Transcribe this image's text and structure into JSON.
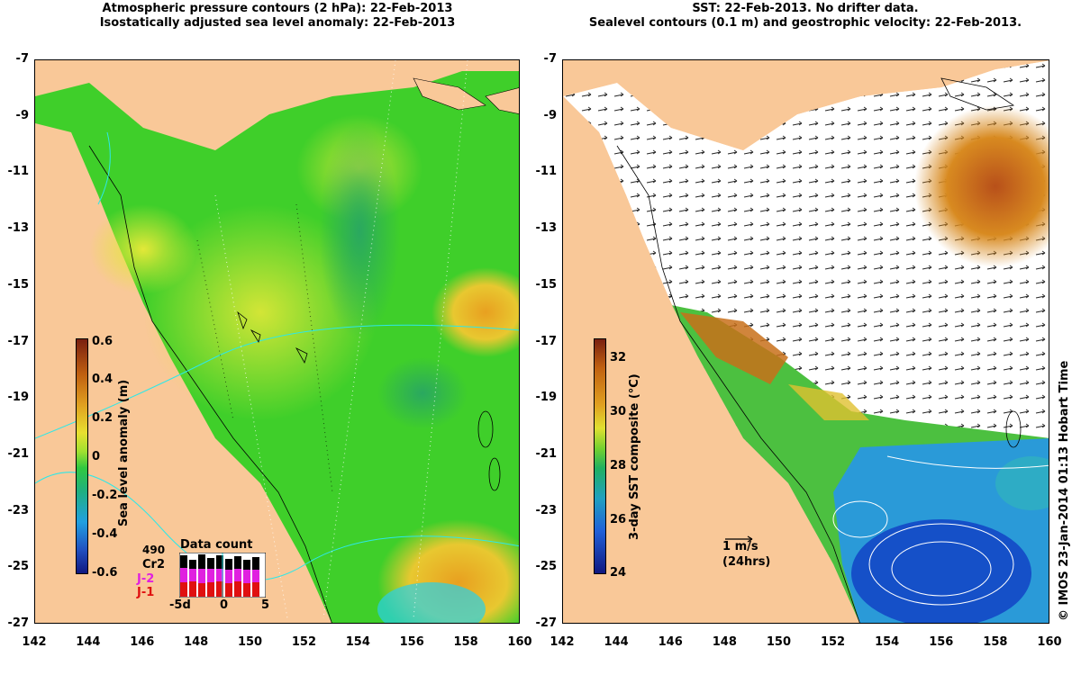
{
  "left": {
    "title_line1": "Atmospheric pressure contours (2 hPa): 22-Feb-2013",
    "title_line2": "Isostatically adjusted sea level anomaly: 22-Feb-2013",
    "colorbar_label": "Sea level anomaly (m)",
    "colorbar_ticks": [
      "0.6",
      "0.4",
      "0.2",
      "0",
      "-0.2",
      "-0.4",
      "-0.6"
    ],
    "data_count": {
      "title": "Data count",
      "counts_label": "490",
      "sat1": "Cr2",
      "sat2": "J-2",
      "sat3": "J-1",
      "x_ticks": [
        "-5d",
        "0",
        "5"
      ]
    }
  },
  "right": {
    "title_line1": "SST: 22-Feb-2013. No drifter data.",
    "title_line2": "Sealevel contours (0.1 m) and geostrophic velocity: 22-Feb-2013.",
    "colorbar_label": "3-day SST composite (°C)",
    "colorbar_ticks": [
      "32",
      "30",
      "28",
      "26",
      "24"
    ],
    "scale_label": "1 m/s",
    "scale_sub": "(24hrs)"
  },
  "axes": {
    "y_ticks": [
      "-7",
      "-9",
      "-11",
      "-13",
      "-15",
      "-17",
      "-19",
      "-21",
      "-23",
      "-25",
      "-27"
    ],
    "x_ticks": [
      "142",
      "144",
      "146",
      "148",
      "150",
      "152",
      "154",
      "156",
      "158",
      "160"
    ]
  },
  "credit": "© IMOS 23-Jan-2014 01:13 Hobart Time",
  "colors": {
    "land": "#f9c898",
    "sea_green": "#3fcf2a",
    "sla_yellow": "#e0e836",
    "sst_blue": "#1266d8",
    "sst_red": "#b8501a"
  }
}
